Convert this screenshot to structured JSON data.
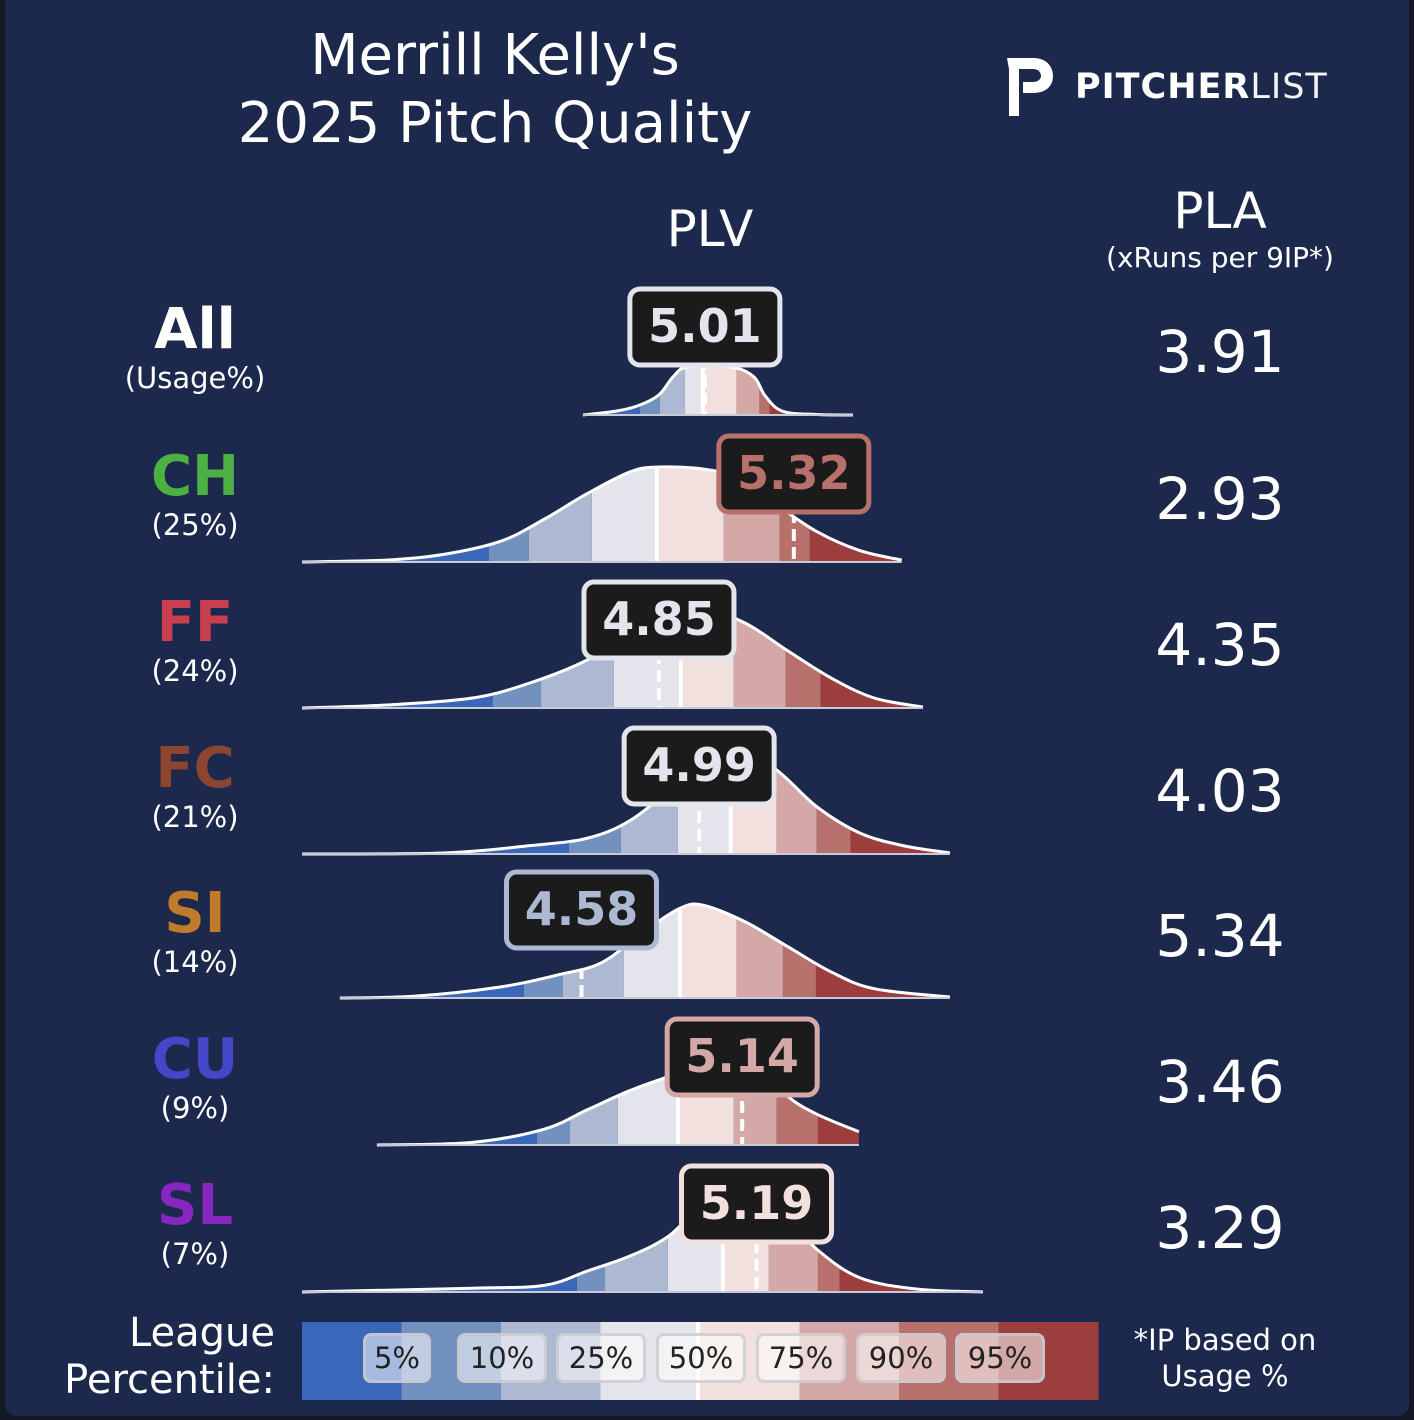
{
  "header": {
    "title_line1": "Merrill Kelly's",
    "title_line2": "2025 Pitch Quality",
    "logo_bold": "PITCHER",
    "logo_thin": "LIST"
  },
  "columns": {
    "plv": "PLV",
    "pla": "PLA",
    "pla_sub": "(xRuns per 9IP*)"
  },
  "legend": {
    "label_line1": "League",
    "label_line2": "Percentile:",
    "percentiles": [
      "5%",
      "10%",
      "25%",
      "50%",
      "75%",
      "90%",
      "95%"
    ],
    "band_colors": [
      "#3a67b9",
      "#7391be",
      "#adb9d2",
      "#e4e5ec",
      "#f1e0de",
      "#d4a8a6",
      "#b8706c",
      "#9b3e3d"
    ],
    "footnote_line1": "*IP based on",
    "footnote_line2": "Usage %"
  },
  "chart_data": {
    "type": "area",
    "title": "Merrill Kelly's 2025 Pitch Quality",
    "xlabel": "PLV",
    "xlim": [
      3.606,
      6.38
    ],
    "rows": [
      {
        "code": "All",
        "usage": "(Usage%)",
        "color": "#ffffff",
        "plv": "5.01",
        "plv_value": 5.01,
        "pla": "3.91",
        "label_color": "#e4e5ec",
        "percentile_cuts": [
          4.784,
          4.853,
          4.94,
          5.003,
          5.12,
          5.2,
          5.236
        ],
        "density": [
          [
            4.585,
            0
          ],
          [
            4.7,
            0.08
          ],
          [
            4.78,
            0.2
          ],
          [
            4.85,
            0.42
          ],
          [
            4.9,
            0.8
          ],
          [
            4.95,
            1
          ],
          [
            5.1,
            1
          ],
          [
            5.18,
            0.8
          ],
          [
            5.22,
            0.4
          ],
          [
            5.28,
            0.08
          ],
          [
            5.4,
            0.01
          ],
          [
            5.526,
            0
          ]
        ]
      },
      {
        "code": "CH",
        "usage": "(25%)",
        "color": "#4cb043",
        "plv": "5.32",
        "plv_value": 5.32,
        "pla": "2.93",
        "label_color": "#b8706c",
        "percentile_cuts": [
          4.257,
          4.397,
          4.616,
          4.843,
          5.076,
          5.271,
          5.376
        ],
        "density": [
          [
            3.606,
            0
          ],
          [
            3.9,
            0.02
          ],
          [
            4.1,
            0.08
          ],
          [
            4.3,
            0.22
          ],
          [
            4.45,
            0.45
          ],
          [
            4.6,
            0.72
          ],
          [
            4.75,
            0.95
          ],
          [
            4.85,
            1
          ],
          [
            5.0,
            0.98
          ],
          [
            5.1,
            0.9
          ],
          [
            5.25,
            0.62
          ],
          [
            5.4,
            0.32
          ],
          [
            5.55,
            0.12
          ],
          [
            5.696,
            0.02
          ]
        ]
      },
      {
        "code": "FF",
        "usage": "(24%)",
        "color": "#c8404f",
        "plv": "4.85",
        "plv_value": 4.85,
        "pla": "4.35",
        "label_color": "#e4e5ec",
        "percentile_cuts": [
          4.271,
          4.439,
          4.693,
          4.926,
          5.111,
          5.292,
          5.414
        ],
        "density": [
          [
            3.606,
            0
          ],
          [
            3.9,
            0.03
          ],
          [
            4.2,
            0.1
          ],
          [
            4.4,
            0.25
          ],
          [
            4.6,
            0.48
          ],
          [
            4.75,
            0.75
          ],
          [
            4.9,
            0.95
          ],
          [
            5.0,
            1
          ],
          [
            5.15,
            0.85
          ],
          [
            5.3,
            0.57
          ],
          [
            5.45,
            0.3
          ],
          [
            5.6,
            0.1
          ],
          [
            5.77,
            0.01
          ]
        ]
      },
      {
        "code": "FC",
        "usage": "(21%)",
        "color": "#8b4530",
        "plv": "4.99",
        "plv_value": 4.99,
        "pla": "4.03",
        "label_color": "#e4e5ec",
        "percentile_cuts": [
          4.536,
          4.717,
          4.916,
          5.1,
          5.26,
          5.4,
          5.518
        ],
        "density": [
          [
            3.606,
            0
          ],
          [
            4.1,
            0.01
          ],
          [
            4.4,
            0.08
          ],
          [
            4.6,
            0.15
          ],
          [
            4.75,
            0.32
          ],
          [
            4.9,
            0.65
          ],
          [
            5.0,
            0.95
          ],
          [
            5.1,
            1
          ],
          [
            5.25,
            0.82
          ],
          [
            5.4,
            0.45
          ],
          [
            5.55,
            0.2
          ],
          [
            5.7,
            0.08
          ],
          [
            5.864,
            0.01
          ]
        ]
      },
      {
        "code": "SI",
        "usage": "(14%)",
        "color": "#bf7b2a",
        "plv": "4.58",
        "plv_value": 4.58,
        "pla": "5.34",
        "label_color": "#adb9d2",
        "percentile_cuts": [
          4.379,
          4.515,
          4.728,
          4.923,
          5.12,
          5.282,
          5.397
        ],
        "density": [
          [
            3.738,
            0
          ],
          [
            4.0,
            0.02
          ],
          [
            4.3,
            0.12
          ],
          [
            4.5,
            0.25
          ],
          [
            4.65,
            0.38
          ],
          [
            4.8,
            0.72
          ],
          [
            4.92,
            0.96
          ],
          [
            5.0,
            1
          ],
          [
            5.15,
            0.82
          ],
          [
            5.3,
            0.55
          ],
          [
            5.45,
            0.28
          ],
          [
            5.6,
            0.1
          ],
          [
            5.864,
            0.01
          ]
        ]
      },
      {
        "code": "CU",
        "usage": "(9%)",
        "color": "#4547c9",
        "plv": "5.14",
        "plv_value": 5.14,
        "pla": "3.46",
        "label_color": "#d4a8a6",
        "percentile_cuts": [
          4.425,
          4.54,
          4.707,
          4.916,
          5.111,
          5.26,
          5.404
        ],
        "density": [
          [
            3.867,
            0
          ],
          [
            4.2,
            0.03
          ],
          [
            4.45,
            0.18
          ],
          [
            4.6,
            0.4
          ],
          [
            4.75,
            0.62
          ],
          [
            4.9,
            0.8
          ],
          [
            5.05,
            1
          ],
          [
            5.2,
            0.9
          ],
          [
            5.3,
            0.55
          ],
          [
            5.4,
            0.35
          ],
          [
            5.547,
            0.15
          ]
        ]
      },
      {
        "code": "SL",
        "usage": "(7%)",
        "color": "#8727c0",
        "plv": "5.19",
        "plv_value": 5.19,
        "pla": "3.29",
        "label_color": "#f1e0de",
        "percentile_cuts": [
          4.564,
          4.662,
          4.881,
          5.073,
          5.233,
          5.404,
          5.48
        ],
        "density": [
          [
            3.606,
            0
          ],
          [
            4.2,
            0.04
          ],
          [
            4.45,
            0.07
          ],
          [
            4.6,
            0.22
          ],
          [
            4.75,
            0.38
          ],
          [
            4.88,
            0.58
          ],
          [
            5.0,
            0.9
          ],
          [
            5.12,
            1
          ],
          [
            5.25,
            0.9
          ],
          [
            5.4,
            0.45
          ],
          [
            5.55,
            0.15
          ],
          [
            5.75,
            0.03
          ],
          [
            5.979,
            0
          ]
        ]
      }
    ]
  }
}
